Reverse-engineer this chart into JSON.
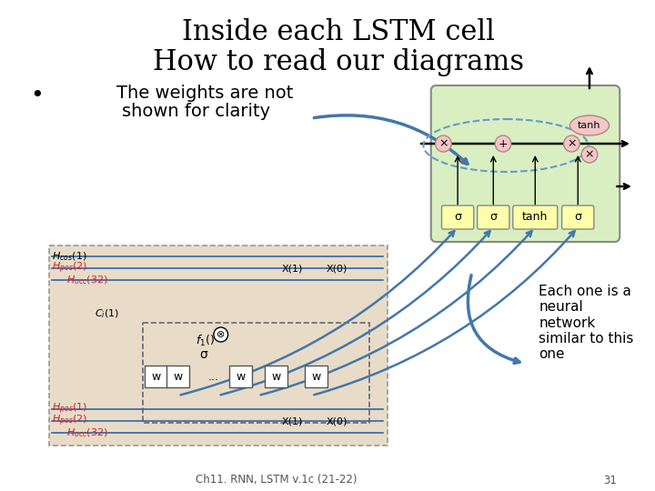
{
  "title_line1": "Inside each LSTM cell",
  "title_line2": "How to read our diagrams",
  "bullet_text_1": "The weights are not",
  "bullet_text_2": "shown for clarity",
  "annotation_text": "Each one is a\nneural\nnetwork\nsimilar to this\none",
  "footer_text": "Ch11. RNN, LSTM v.1c (21-22)",
  "footer_page": "31",
  "bg_color": "#ffffff",
  "title_fontsize": 22,
  "bullet_fontsize": 14,
  "annotation_fontsize": 11,
  "lstm_box_color": "#d9efc2",
  "lstm_box_border": "#888888",
  "gate_color": "#ffffaa",
  "gate_border": "#888888",
  "tanh_color": "#f7c5c5",
  "dashed_circle_color": "#6699cc",
  "arrow_color": "#4477aa",
  "diagram_bg": "#e8dcc8",
  "line_color": "#3366aa",
  "label_color_black": "#000000",
  "label_color_red": "#cc2222"
}
